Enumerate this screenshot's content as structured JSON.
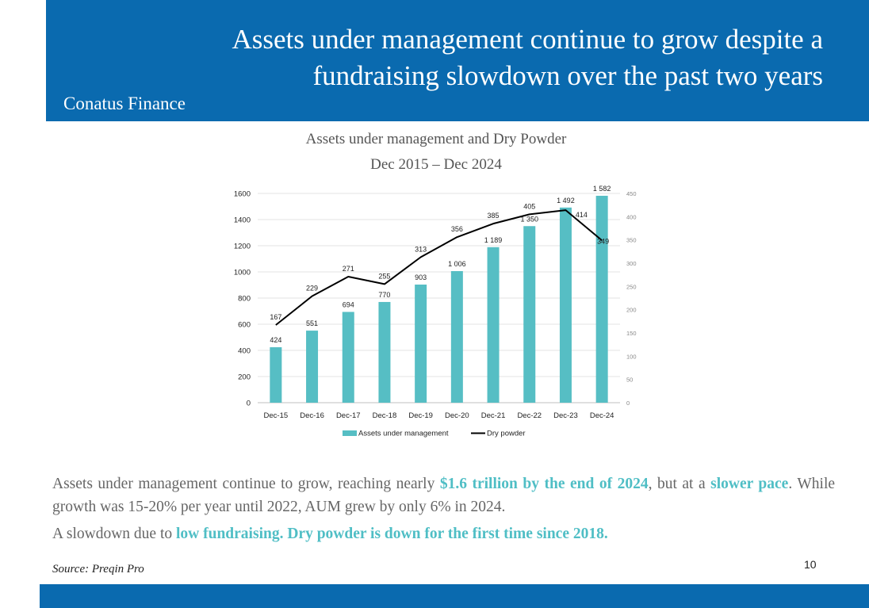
{
  "slide": {
    "title_line1": "Assets under management continue to grow despite a",
    "title_line2": "fundraising slowdown over the past two years",
    "company": "Conatus Finance",
    "source": "Source: Preqin Pro",
    "page_number": "10",
    "header_color": "#0a6aaf",
    "highlight_color": "#4fbec5"
  },
  "text": {
    "p1_a": "Assets under management continue to grow, reaching nearly ",
    "p1_b": "$1.6 trillion by the end of 2024",
    "p1_c": ", but at a ",
    "p1_d": "slower pace",
    "p1_e": ". While growth was 15-20% per year until 2022, AUM grew by only 6% in 2024.",
    "p2_a": "A slowdown due to ",
    "p2_b": "low fundraising. Dry powder is down for the first time since 2018."
  },
  "chart_data": {
    "type": "bar",
    "title": "Assets under management and Dry Powder",
    "subtitle": "Dec 2015 – Dec 2024",
    "categories": [
      "Dec-15",
      "Dec-16",
      "Dec-17",
      "Dec-18",
      "Dec-19",
      "Dec-20",
      "Dec-21",
      "Dec-22",
      "Dec-23",
      "Dec-24"
    ],
    "series": [
      {
        "name": "Assets under management",
        "type": "bar",
        "axis": "left",
        "color": "#56bec4",
        "values": [
          424,
          551,
          694,
          770,
          903,
          1006,
          1189,
          1350,
          1492,
          1582
        ],
        "labels": [
          "424",
          "551",
          "694",
          "770",
          "903",
          "1 006",
          "1 189",
          "1 350",
          "1 492",
          "1 582"
        ]
      },
      {
        "name": "Dry powder",
        "type": "line",
        "axis": "right",
        "color": "#000000",
        "values": [
          167,
          229,
          271,
          255,
          313,
          356,
          385,
          405,
          414,
          349
        ],
        "labels": [
          "167",
          "229",
          "271",
          "255",
          "313",
          "356",
          "385",
          "405",
          "414",
          "349"
        ]
      }
    ],
    "ylim_left": [
      0,
      1600
    ],
    "yticks_left": [
      "0",
      "200",
      "400",
      "600",
      "800",
      "1000",
      "1200",
      "1400",
      "1600"
    ],
    "ylim_right": [
      0,
      450
    ],
    "yticks_right": [
      "0",
      "50",
      "100",
      "150",
      "200",
      "250",
      "300",
      "350",
      "400",
      "450"
    ],
    "grid": true,
    "legend_position": "bottom"
  }
}
